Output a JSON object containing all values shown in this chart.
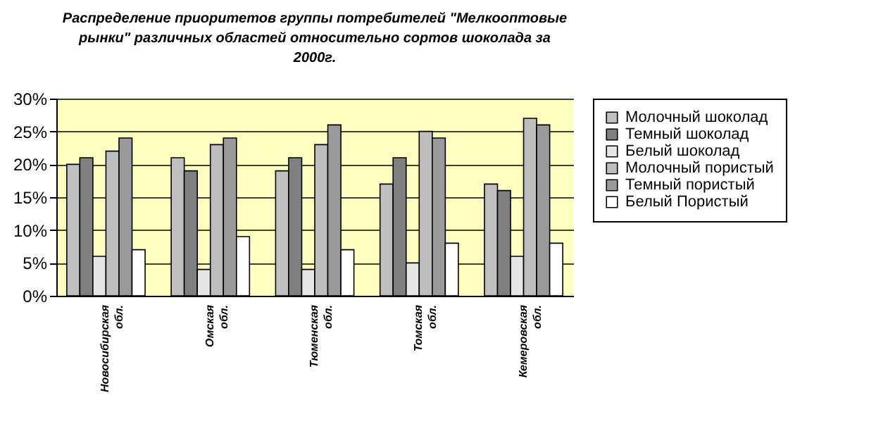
{
  "chart_data": {
    "type": "bar",
    "title": "Распределение приоритетов группы потребителей \"Мелкооптовые рынки\" различных областей относительно сортов шоколада за 2000г.",
    "categories": [
      "Новосибирская обл.",
      "Омская обл.",
      "Тюменская обл.",
      "Томская обл.",
      "Кемеровская обл."
    ],
    "series": [
      {
        "name": "Молочный шоколад",
        "color": "#c0c0c0",
        "values": [
          20,
          21,
          19,
          17,
          17
        ]
      },
      {
        "name": "Темный шоколад",
        "color": "#808080",
        "values": [
          21,
          19,
          21,
          21,
          16
        ]
      },
      {
        "name": "Белый шоколад",
        "color": "#e6e6e6",
        "values": [
          6,
          4,
          4,
          5,
          6
        ]
      },
      {
        "name": "Молочный пористый",
        "color": "#bdbdbd",
        "values": [
          22,
          23,
          23,
          25,
          27
        ]
      },
      {
        "name": "Темный пористый",
        "color": "#9a9a9a",
        "values": [
          24,
          24,
          26,
          24,
          26
        ]
      },
      {
        "name": "Белый Пористый",
        "color": "#ffffff",
        "values": [
          7,
          9,
          7,
          8,
          8
        ]
      }
    ],
    "ylim": [
      0,
      30
    ],
    "yticks": [
      {
        "value": 0,
        "label": "0%"
      },
      {
        "value": 5,
        "label": "5%"
      },
      {
        "value": 10,
        "label": "10%"
      },
      {
        "value": 15,
        "label": "15%"
      },
      {
        "value": 20,
        "label": "20%"
      },
      {
        "value": 25,
        "label": "25%"
      },
      {
        "value": 30,
        "label": "30%"
      }
    ],
    "grid": "y",
    "legend": "right"
  }
}
